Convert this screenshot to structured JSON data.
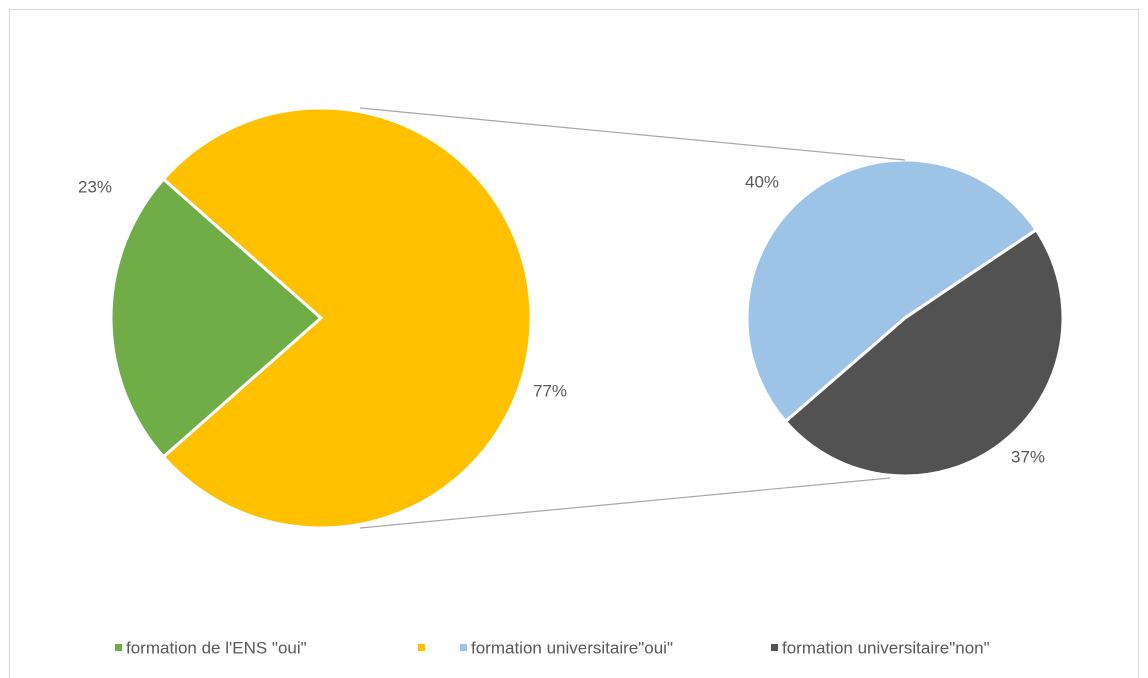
{
  "chart_data": {
    "type": "pie-of-pie",
    "categories": [
      "formation de l'ENS \"oui\"",
      null
    ],
    "values": [
      23,
      77
    ],
    "value_labels": [
      "23%",
      "77%"
    ],
    "colors": [
      "#70ad47",
      "#ffc000"
    ],
    "secondary": {
      "categories": [
        "formation universitaire\"oui\"",
        "formation universitaire\"non\""
      ],
      "values": [
        40,
        37
      ],
      "value_labels": [
        "40%",
        "37%"
      ],
      "colors": [
        "#9dc3e6",
        "#525252"
      ]
    },
    "legend": "bottom"
  }
}
